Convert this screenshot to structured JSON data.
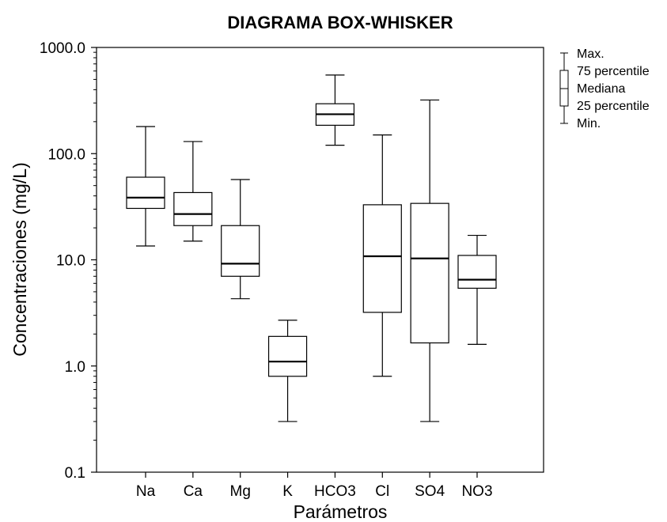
{
  "chart_data": {
    "type": "boxplot",
    "title": "DIAGRAMA BOX-WHISKER",
    "xlabel": "Parámetros",
    "ylabel": "Concentraciones (mg/L)",
    "yscale": "log",
    "ylim": [
      0.1,
      1000
    ],
    "yticks": [
      {
        "value": 0.1,
        "label": "0.1"
      },
      {
        "value": 1,
        "label": "1.0"
      },
      {
        "value": 10,
        "label": "10.0"
      },
      {
        "value": 100,
        "label": "100.0"
      },
      {
        "value": 1000,
        "label": "1000.0"
      }
    ],
    "grid": false,
    "legend_position": "top-right",
    "categories": [
      "Na",
      "Ca",
      "Mg",
      "K",
      "HCO3",
      "Cl",
      "SO4",
      "NO3"
    ],
    "boxes": [
      {
        "category": "Na",
        "min": 13.5,
        "q1": 30.5,
        "median": 38.5,
        "q3": 60,
        "max": 180
      },
      {
        "category": "Ca",
        "min": 15,
        "q1": 21,
        "median": 27,
        "q3": 43,
        "max": 130
      },
      {
        "category": "Mg",
        "min": 4.3,
        "q1": 7,
        "median": 9.2,
        "q3": 21,
        "max": 57
      },
      {
        "category": "K",
        "min": 0.3,
        "q1": 0.8,
        "median": 1.1,
        "q3": 1.9,
        "max": 2.7
      },
      {
        "category": "HCO3",
        "min": 120,
        "q1": 185,
        "median": 235,
        "q3": 295,
        "max": 550
      },
      {
        "category": "Cl",
        "min": 0.8,
        "q1": 3.2,
        "median": 10.8,
        "q3": 33,
        "max": 150
      },
      {
        "category": "SO4",
        "min": 0.3,
        "q1": 1.65,
        "median": 10.3,
        "q3": 34,
        "max": 320
      },
      {
        "category": "NO3",
        "min": 1.6,
        "q1": 5.4,
        "median": 6.5,
        "q3": 11,
        "max": 17
      }
    ],
    "legend": {
      "max": "Max.",
      "q3": "75 percentile",
      "median": "Mediana",
      "q1": "25 percentile",
      "min": "Min."
    }
  }
}
